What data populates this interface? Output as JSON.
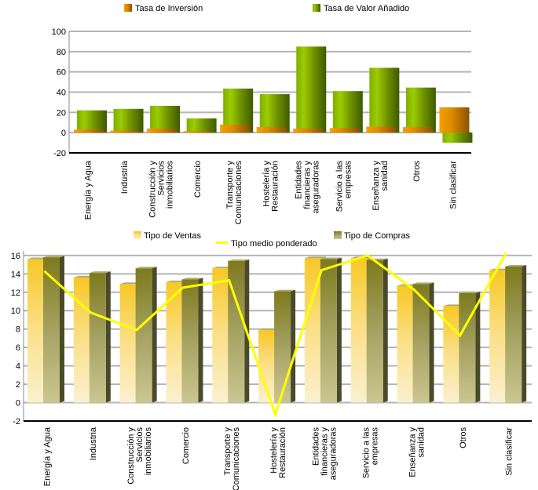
{
  "chart_data": [
    {
      "type": "bar",
      "categories": [
        [
          "Energía y Agua"
        ],
        [
          "Industria"
        ],
        [
          "Construcción y",
          "Servicios",
          "inmobiliarios"
        ],
        [
          "Comercio"
        ],
        [
          "Transporte y",
          "Comunicaciones"
        ],
        [
          "Hostelería y",
          "Restauración"
        ],
        [
          "Entidades",
          "financieras y",
          "aseguradoras"
        ],
        [
          "Servicio a las",
          "empresas"
        ],
        [
          "Enseñanza y",
          "sanidad"
        ],
        [
          "Otros"
        ],
        [
          "Sin clasificar"
        ]
      ],
      "series": [
        {
          "name": "Tasa de Inversión",
          "color": "#f39a00",
          "values": [
            3,
            2,
            4,
            1.5,
            8,
            5.5,
            4,
            4.5,
            6,
            5.5,
            25
          ]
        },
        {
          "name": "Tasa de Valor Añadido",
          "color": "#8fc400",
          "values": [
            22,
            23.5,
            26.5,
            14,
            43.5,
            38,
            85,
            41,
            64,
            44.5,
            -10
          ]
        }
      ],
      "yticks": [
        "100",
        "80",
        "60",
        "40",
        "20",
        "0",
        "-20"
      ],
      "ylim": [
        -20,
        100
      ],
      "grid": true,
      "legend": "top"
    },
    {
      "type": "bar",
      "categories": [
        [
          "Energía y Agua"
        ],
        [
          "Industria"
        ],
        [
          "Construcción y",
          "Servicios",
          "inmobiliarios"
        ],
        [
          "Comercio"
        ],
        [
          "Transporte y",
          "Comunicaciones"
        ],
        [
          "Hostelería y",
          "Restauración"
        ],
        [
          "Entidades",
          "financieras y",
          "aseguradoras"
        ],
        [
          "Servicio a las",
          "empresas"
        ],
        [
          "Enseñanza y",
          "sanidad"
        ],
        [
          "Otros"
        ],
        [
          "Sin clasificar"
        ]
      ],
      "series": [
        {
          "name": "Tipo de Ventas",
          "type": "bar",
          "color": "#f7c825",
          "values": [
            15.6,
            13.6,
            12.9,
            13.1,
            14.6,
            7.9,
            15.7,
            15.7,
            12.7,
            10.5,
            14.4
          ]
        },
        {
          "name": "Tipo medio ponderado",
          "type": "line",
          "color": "#ffff00",
          "values": [
            14.3,
            9.8,
            7.9,
            12.5,
            13.3,
            -1.3,
            14.4,
            16.0,
            12.3,
            7.3,
            16.3
          ]
        },
        {
          "name": "Tipo de Compras",
          "type": "bar",
          "color": "#7d7a1e",
          "values": [
            15.8,
            14.1,
            14.6,
            13.4,
            15.4,
            12.1,
            15.6,
            15.5,
            12.9,
            11.9,
            14.8
          ]
        }
      ],
      "yticks": [
        "16",
        "14",
        "12",
        "10",
        "8",
        "6",
        "4",
        "2",
        "0",
        "-2"
      ],
      "ylim": [
        -2,
        16.5
      ],
      "grid": true,
      "legend": "top"
    }
  ]
}
